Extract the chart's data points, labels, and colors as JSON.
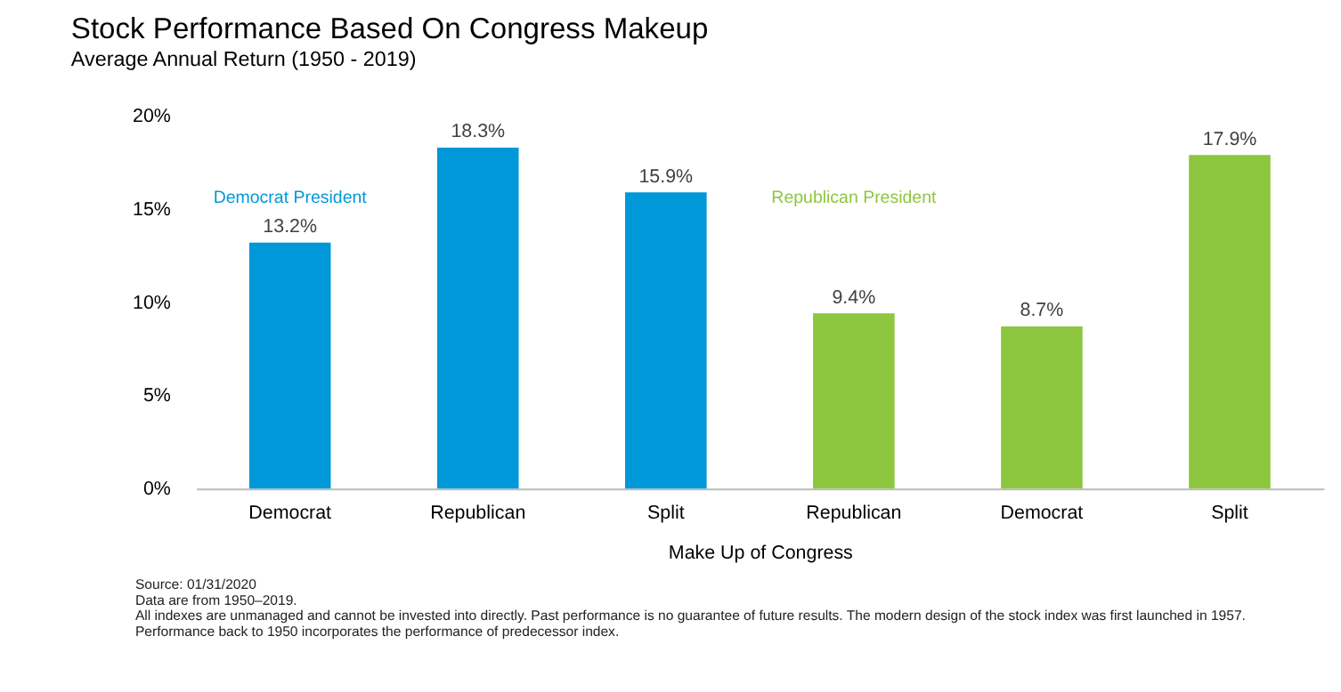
{
  "chart_data": {
    "type": "bar",
    "title": "Stock Performance Based On Congress Makeup",
    "subtitle": "Average Annual Return (1950 - 2019)",
    "xlabel": "Make Up of Congress",
    "categories": [
      "Democrat",
      "Republican",
      "Split",
      "Republican",
      "Democrat",
      "Split"
    ],
    "values": [
      13.2,
      18.3,
      15.9,
      9.4,
      8.7,
      17.9
    ],
    "colors": [
      "#0098d8",
      "#0098d8",
      "#0098d8",
      "#8dc63f",
      "#8dc63f",
      "#8dc63f"
    ],
    "value_labels": [
      "13.2%",
      "18.3%",
      "15.9%",
      "9.4%",
      "8.7%",
      "17.9%"
    ],
    "ylim": [
      0,
      20
    ],
    "yticks": [
      {
        "value": 0,
        "label": "0%"
      },
      {
        "value": 5,
        "label": "5%"
      },
      {
        "value": 10,
        "label": "10%"
      },
      {
        "value": 15,
        "label": "15%"
      },
      {
        "value": 20,
        "label": "20%"
      }
    ],
    "grid": false,
    "annotations": [
      "Democrat President",
      "Republican President",
      "Source: 01/31/2020",
      "Data are from 1950–2019.",
      "All indexes are unmanaged and cannot be invested into directly. Past performance is no guarantee of future results. The modern design of the stock index was first launched in 1957.",
      "Performance back to 1950 incorporates the performance of predecessor index."
    ]
  }
}
